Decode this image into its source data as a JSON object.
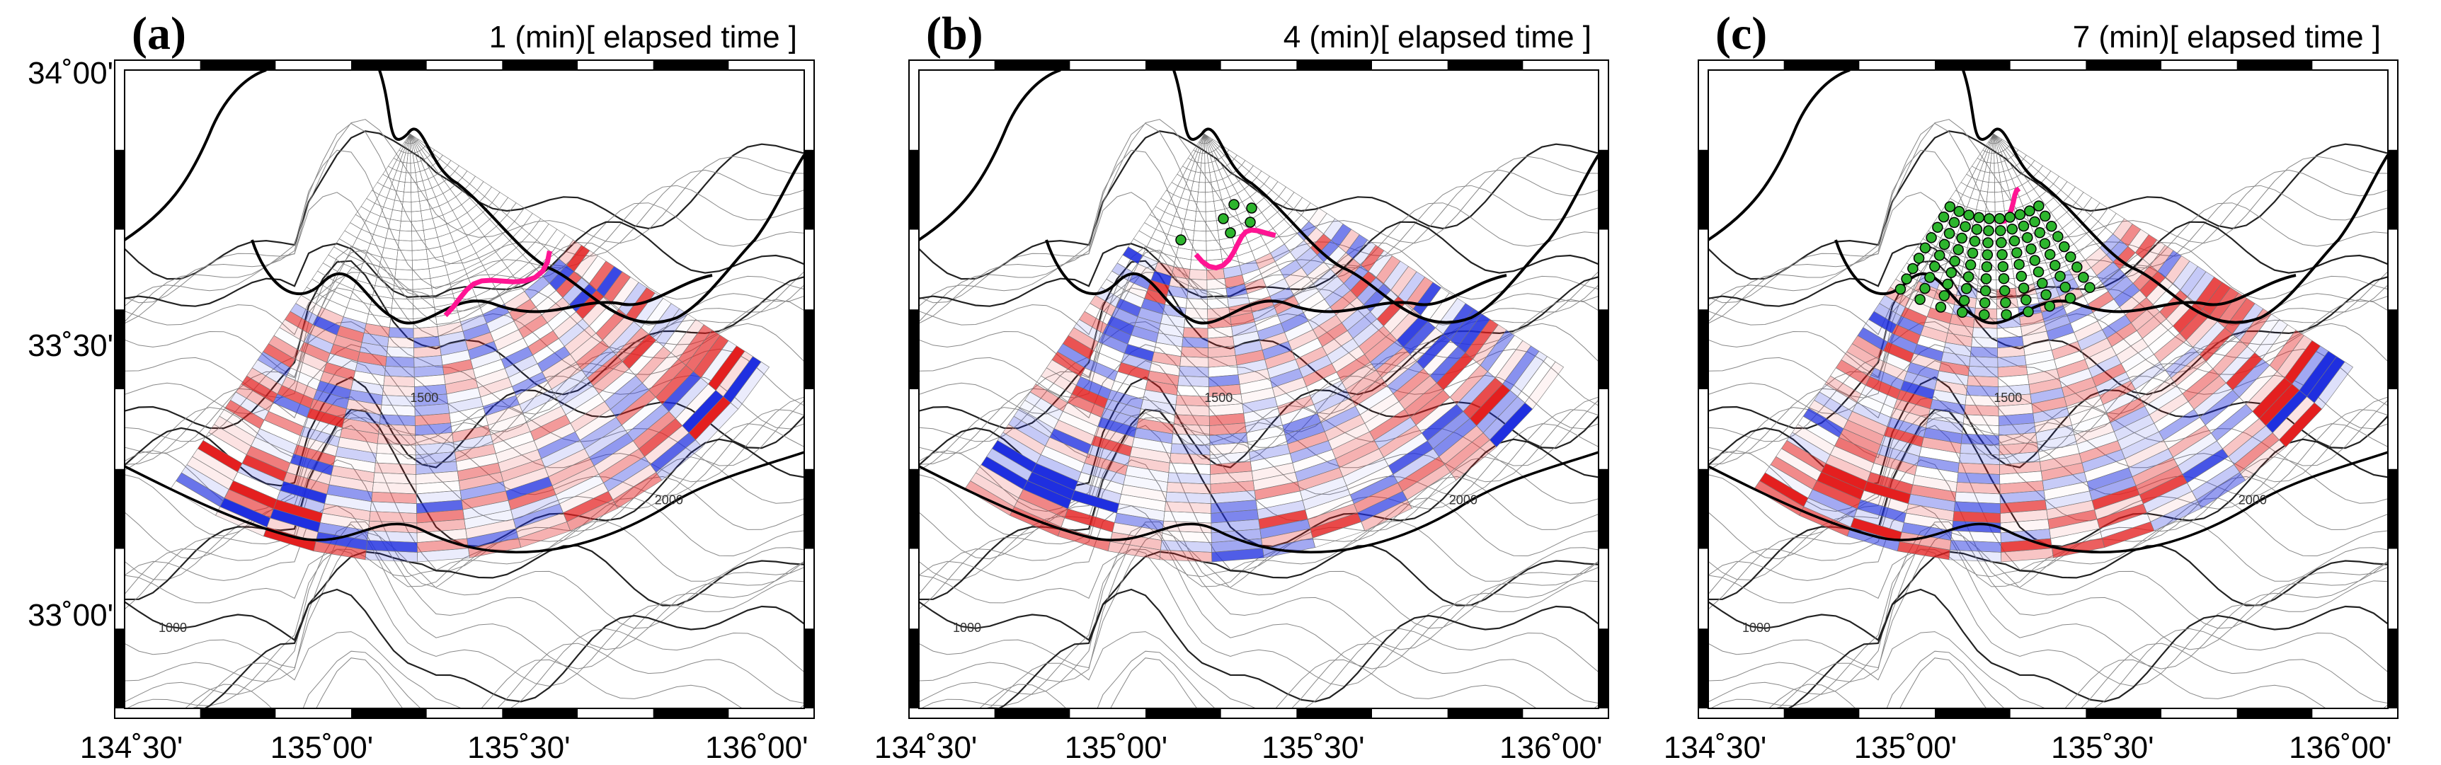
{
  "panels": [
    {
      "label": "(a)",
      "time": "1 (min)[ elapsed time ]"
    },
    {
      "label": "(b)",
      "time": "4 (min)[ elapsed time ]"
    },
    {
      "label": "(c)",
      "time": "7 (min)[ elapsed time ]"
    }
  ],
  "lat_labels": [
    "34˚00'",
    "33˚30'",
    "33˚00'"
  ],
  "lon_labels": [
    "134˚30'",
    "135˚00'",
    "135˚30'",
    "136˚00'"
  ],
  "contour_labels": [
    "1500",
    "2000",
    "1000"
  ]
}
